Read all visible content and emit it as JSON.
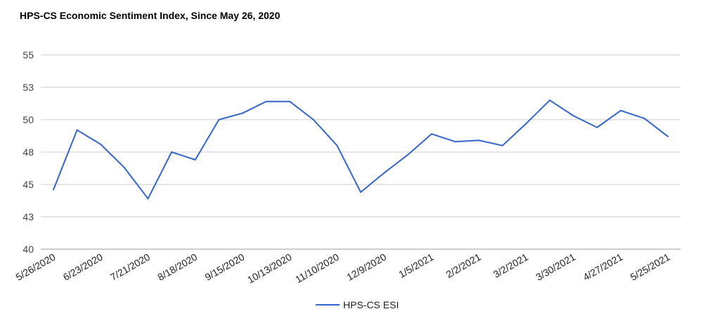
{
  "chart_data": {
    "type": "line",
    "title": "HPS-CS Economic Sentiment Index, Since May 26, 2020",
    "xlabel": "",
    "ylabel": "",
    "y_ticks": [
      "40",
      "43",
      "45",
      "48",
      "50",
      "53",
      "55"
    ],
    "ylim": [
      40,
      55
    ],
    "grid": true,
    "legend_position": "bottom",
    "x": [
      "5/26/2020",
      "6/9/2020",
      "6/23/2020",
      "7/7/2020",
      "7/21/2020",
      "8/4/2020",
      "8/18/2020",
      "9/1/2020",
      "9/15/2020",
      "9/29/2020",
      "10/13/2020",
      "10/27/2020",
      "11/10/2020",
      "11/24/2020",
      "12/9/2020",
      "12/22/2020",
      "1/5/2021",
      "1/19/2021",
      "2/2/2021",
      "2/16/2021",
      "3/2/2021",
      "3/16/2021",
      "3/30/2021",
      "4/13/2021",
      "4/27/2021",
      "5/11/2021",
      "5/25/2021"
    ],
    "x_tick_labels": [
      "5/26/2020",
      "6/23/2020",
      "7/21/2020",
      "8/18/2020",
      "9/15/2020",
      "10/13/2020",
      "11/10/2020",
      "12/9/2020",
      "1/5/2021",
      "2/2/2021",
      "3/2/2021",
      "3/30/2021",
      "4/27/2021",
      "5/25/2021"
    ],
    "series": [
      {
        "name": "HPS-CS ESI",
        "color": "#3366cc",
        "values": [
          44.6,
          49.2,
          48.1,
          46.3,
          43.9,
          47.5,
          46.9,
          50.0,
          50.5,
          51.4,
          51.4,
          50.0,
          48.0,
          44.4,
          45.9,
          47.3,
          48.9,
          48.3,
          48.4,
          48.0,
          49.7,
          51.5,
          50.3,
          49.4,
          50.7,
          50.1,
          48.7
        ]
      }
    ]
  }
}
